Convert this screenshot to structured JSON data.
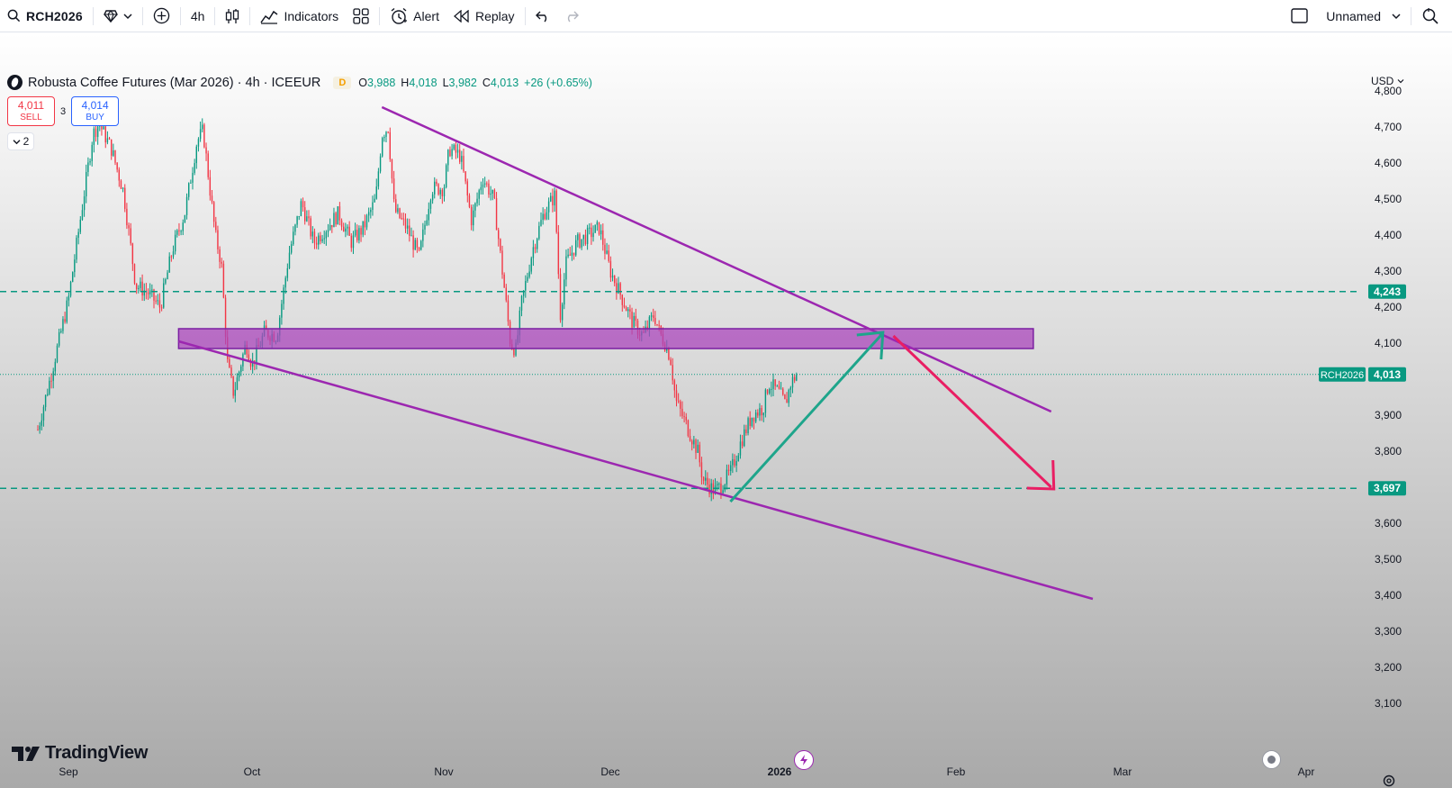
{
  "toolbar": {
    "symbol": "RCH2026",
    "interval": "4h",
    "indicators_label": "Indicators",
    "alert_label": "Alert",
    "replay_label": "Replay",
    "layout_name": "Unnamed"
  },
  "legend": {
    "title": "Robusta Coffee Futures (Mar 2026) · 4h · ICEEUR",
    "badge": "D",
    "open_label": "O",
    "open": "3,988",
    "high_label": "H",
    "high": "4,018",
    "low_label": "L",
    "low": "3,982",
    "close_label": "C",
    "close": "4,013",
    "change": "+26 (+0.65%)"
  },
  "trade": {
    "sell_price": "4,011",
    "sell_label": "SELL",
    "spread": "3",
    "buy_price": "4,014",
    "buy_label": "BUY"
  },
  "collapse_count": "2",
  "currency": "USD",
  "branding": "TradingView",
  "colors": {
    "up": "#089981",
    "down": "#f23645",
    "channel": "#9c27b0",
    "zone_fill": "#ab47bc",
    "level": "#089981",
    "arrow_up": "#1ea58b",
    "arrow_down": "#e91e63"
  },
  "chart_data": {
    "type": "candlestick",
    "symbol": "RCH2026",
    "interval": "4h",
    "y_ticks": [
      4800,
      4700,
      4600,
      4500,
      4400,
      4300,
      4200,
      4100,
      3900,
      3800,
      3600,
      3500,
      3400,
      3300,
      3200,
      3100
    ],
    "y_tick_labels": [
      "4,800",
      "4,700",
      "4,600",
      "4,500",
      "4,400",
      "4,300",
      "4,200",
      "4,100",
      "3,900",
      "3,800",
      "3,600",
      "3,500",
      "3,400",
      "3,300",
      "3,200",
      "3,100"
    ],
    "x_labels": [
      {
        "label": "Sep",
        "date": "2025-09-01"
      },
      {
        "label": "Oct",
        "date": "2025-10-01"
      },
      {
        "label": "Nov",
        "date": "2025-11-01"
      },
      {
        "label": "Dec",
        "date": "2025-12-01"
      },
      {
        "label": "2026",
        "date": "2026-01-01"
      },
      {
        "label": "Feb",
        "date": "2026-02-01"
      },
      {
        "label": "Mar",
        "date": "2026-03-01"
      },
      {
        "label": "Apr",
        "date": "2026-04-01"
      }
    ],
    "current_price": {
      "label": "RCH2026",
      "value": 4013,
      "value_label": "4,013"
    },
    "horizontal_levels": [
      {
        "value": 4243,
        "label": "4,243"
      },
      {
        "value": 3697,
        "label": "3,697"
      }
    ],
    "zone": {
      "start": "2025-09-19",
      "end": "2026-02-14",
      "from": 4085,
      "to": 4140
    },
    "channel_lines": [
      {
        "start": [
          "2025-10-22",
          4755
        ],
        "end": [
          "2026-02-17",
          3910
        ]
      },
      {
        "start": [
          "2025-09-19",
          4105
        ],
        "end": [
          "2026-02-24",
          3390
        ]
      }
    ],
    "arrows": [
      {
        "direction": "up",
        "start": [
          "2025-12-23",
          3660
        ],
        "end": [
          "2026-01-19",
          4125
        ]
      },
      {
        "direction": "down",
        "start": [
          "2026-01-21",
          4120
        ],
        "end": [
          "2026-02-17",
          3700
        ]
      }
    ],
    "price_path": [
      [
        "2025-08-27",
        3860
      ],
      [
        "2025-08-29",
        4000
      ],
      [
        "2025-09-01",
        4220
      ],
      [
        "2025-09-03",
        4450
      ],
      [
        "2025-09-05",
        4680
      ],
      [
        "2025-09-06",
        4710
      ],
      [
        "2025-09-08",
        4640
      ],
      [
        "2025-09-10",
        4520
      ],
      [
        "2025-09-12",
        4260
      ],
      [
        "2025-09-14",
        4240
      ],
      [
        "2025-09-16",
        4200
      ],
      [
        "2025-09-18",
        4360
      ],
      [
        "2025-09-20",
        4460
      ],
      [
        "2025-09-22",
        4660
      ],
      [
        "2025-09-23",
        4690
      ],
      [
        "2025-09-25",
        4400
      ],
      [
        "2025-09-26",
        4320
      ],
      [
        "2025-09-27",
        4040
      ],
      [
        "2025-09-28",
        3960
      ],
      [
        "2025-09-30",
        4100
      ],
      [
        "2025-10-01",
        4040
      ],
      [
        "2025-10-03",
        4130
      ],
      [
        "2025-10-05",
        4120
      ],
      [
        "2025-10-07",
        4350
      ],
      [
        "2025-10-09",
        4490
      ],
      [
        "2025-10-11",
        4380
      ],
      [
        "2025-10-13",
        4420
      ],
      [
        "2025-10-15",
        4460
      ],
      [
        "2025-10-17",
        4380
      ],
      [
        "2025-10-19",
        4420
      ],
      [
        "2025-10-21",
        4500
      ],
      [
        "2025-10-22",
        4680
      ],
      [
        "2025-10-23",
        4700
      ],
      [
        "2025-10-24",
        4470
      ],
      [
        "2025-10-26",
        4420
      ],
      [
        "2025-10-28",
        4340
      ],
      [
        "2025-10-30",
        4530
      ],
      [
        "2025-11-01",
        4530
      ],
      [
        "2025-11-02",
        4640
      ],
      [
        "2025-11-04",
        4620
      ],
      [
        "2025-11-06",
        4440
      ],
      [
        "2025-11-08",
        4560
      ],
      [
        "2025-11-10",
        4500
      ],
      [
        "2025-11-12",
        4240
      ],
      [
        "2025-11-13",
        4100
      ],
      [
        "2025-11-14",
        4080
      ],
      [
        "2025-11-15",
        4210
      ],
      [
        "2025-11-17",
        4360
      ],
      [
        "2025-11-19",
        4460
      ],
      [
        "2025-11-21",
        4510
      ],
      [
        "2025-11-22",
        4180
      ],
      [
        "2025-11-23",
        4320
      ],
      [
        "2025-11-25",
        4380
      ],
      [
        "2025-11-27",
        4400
      ],
      [
        "2025-11-29",
        4420
      ],
      [
        "2025-12-01",
        4300
      ],
      [
        "2025-12-03",
        4230
      ],
      [
        "2025-12-05",
        4160
      ],
      [
        "2025-12-07",
        4120
      ],
      [
        "2025-12-09",
        4180
      ],
      [
        "2025-12-10",
        4130
      ],
      [
        "2025-12-11",
        4100
      ],
      [
        "2025-12-12",
        4060
      ],
      [
        "2025-12-13",
        3940
      ],
      [
        "2025-12-15",
        3870
      ],
      [
        "2025-12-17",
        3800
      ],
      [
        "2025-12-18",
        3720
      ],
      [
        "2025-12-20",
        3690
      ],
      [
        "2025-12-21",
        3700
      ],
      [
        "2025-12-23",
        3740
      ],
      [
        "2025-12-25",
        3830
      ],
      [
        "2025-12-27",
        3900
      ],
      [
        "2025-12-29",
        3920
      ],
      [
        "2025-12-30",
        3990
      ],
      [
        "2026-01-01",
        3960
      ],
      [
        "2026-01-02",
        3930
      ],
      [
        "2026-01-03",
        3990
      ],
      [
        "2026-01-04",
        4013
      ]
    ]
  }
}
